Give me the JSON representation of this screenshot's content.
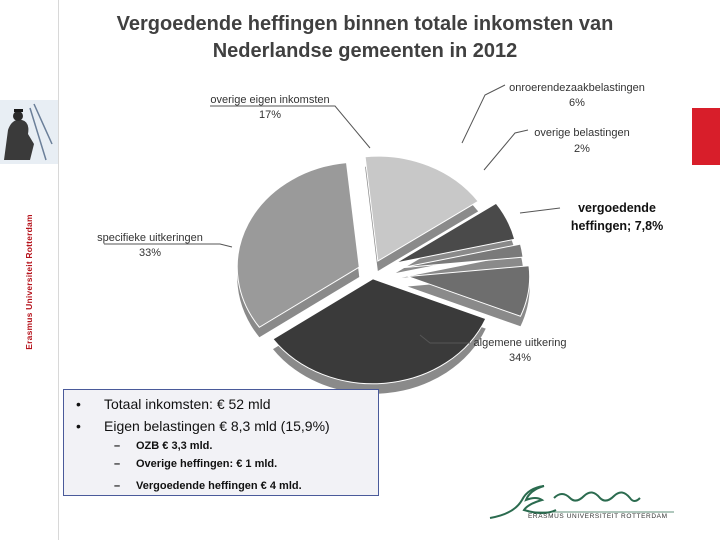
{
  "colors": {
    "brand_red": "#d81e2a",
    "box_border": "#4a5a9a"
  },
  "sidebar": {
    "vertical_text": "Erasmus Universiteit Rotterdam"
  },
  "chart_data": {
    "type": "pie",
    "title": "Vergoedende heffingen binnen totale inkomsten van Nederlandse gemeenten in 2012",
    "title_line1": "Vergoedende heffingen binnen totale inkomsten van",
    "title_line2": "Nederlandse gemeenten in 2012",
    "slices": [
      {
        "label": "overige eigen inkomsten",
        "value_label": "17%",
        "value": 17,
        "color": "#c8c8c8"
      },
      {
        "label": "onroerendezaakbelastingen",
        "value_label": "6%",
        "value": 6,
        "color": "#4a4a4a"
      },
      {
        "label": "overige belastingen",
        "value_label": "2%",
        "value": 2,
        "color": "#7a7a7a"
      },
      {
        "label_line1": "vergoedende",
        "label_line2": "heffingen; 7,8%",
        "value": 7.8,
        "color": "#6e6e6e"
      },
      {
        "label": "algemene uitkering",
        "value_label": "34%",
        "value": 34,
        "color": "#3a3a3a"
      },
      {
        "label": "specifieke uitkeringen",
        "value_label": "33%",
        "value": 33,
        "color": "#9a9a9a"
      }
    ]
  },
  "notes": {
    "items": [
      {
        "bullet": "•",
        "text": "Totaal inkomsten: € 52 mld"
      },
      {
        "bullet": "•",
        "text": "Eigen belastingen € 8,3 mld (15,9%)"
      }
    ],
    "subitems": [
      {
        "dash": "–",
        "text": "OZB € 3,3 mld."
      },
      {
        "dash": "–",
        "text": "Overige heffingen: € 1 mld."
      },
      {
        "dash": "–",
        "text": "Vergoedende heffingen € 4 mld."
      }
    ]
  },
  "footer": {
    "logo_text": "ERASMUS UNIVERSITEIT ROTTERDAM"
  }
}
